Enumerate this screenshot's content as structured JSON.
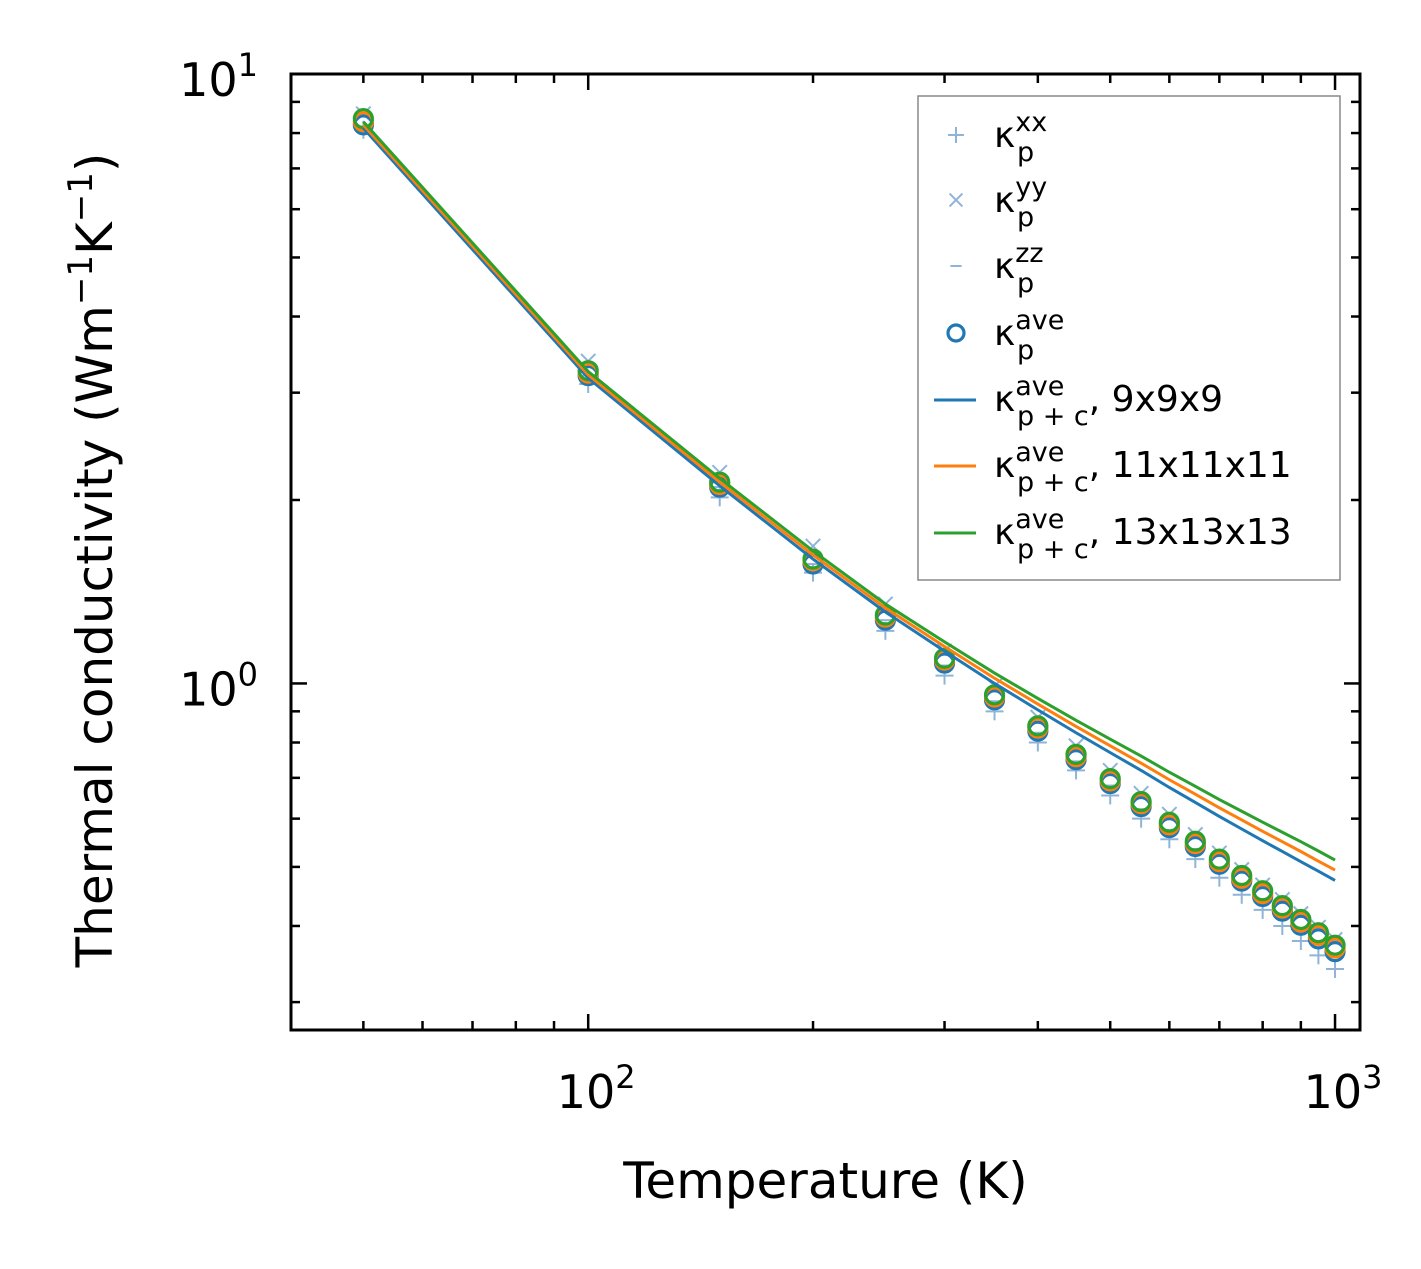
{
  "chart_data": {
    "type": "scatter",
    "xscale": "log",
    "yscale": "log",
    "xlim": [
      40,
      1080
    ],
    "ylim": [
      0.27,
      10
    ],
    "xlabel": "Temperature (K)",
    "ylabel": {
      "main": "Thermal conductivity (Wm",
      "sup1": "−1",
      "mid": "K",
      "sup2": "−1",
      "end": ")"
    },
    "xticks": [
      {
        "value": 100,
        "base": "10",
        "exp": "2"
      },
      {
        "value": 1000,
        "base": "10",
        "exp": "3"
      }
    ],
    "yticks": [
      {
        "value": 1,
        "base": "10",
        "exp": "0"
      },
      {
        "value": 10,
        "base": "10",
        "exp": "1"
      }
    ],
    "temperatures": [
      50,
      100,
      150,
      200,
      250,
      300,
      350,
      400,
      450,
      500,
      550,
      600,
      650,
      700,
      750,
      800,
      850,
      900,
      950,
      1000
    ],
    "series": [
      {
        "name": "kxx",
        "label": {
          "base": "κ",
          "sub": "p",
          "sup": "xx",
          "tail": ""
        },
        "kind": "marker",
        "marker": "plus",
        "color": "#8fb4d8",
        "values": [
          8.1,
          3.1,
          2.02,
          1.52,
          1.22,
          1.03,
          0.9,
          0.8,
          0.72,
          0.655,
          0.6,
          0.555,
          0.515,
          0.48,
          0.45,
          0.425,
          0.4,
          0.378,
          0.358,
          0.34
        ]
      },
      {
        "name": "kyy",
        "label": {
          "base": "κ",
          "sub": "p",
          "sup": "yy",
          "tail": ""
        },
        "kind": "marker",
        "marker": "cross",
        "color": "#8fb4d8",
        "values": [
          8.6,
          3.38,
          2.22,
          1.68,
          1.35,
          1.13,
          0.99,
          0.88,
          0.79,
          0.72,
          0.66,
          0.61,
          0.565,
          0.527,
          0.495,
          0.467,
          0.442,
          0.419,
          0.398,
          0.38
        ]
      },
      {
        "name": "kzz",
        "label": {
          "base": "κ",
          "sub": "p",
          "sup": "zz",
          "tail": ""
        },
        "kind": "marker",
        "marker": "dash",
        "color": "#8fb4d8",
        "values": [
          8.2,
          3.2,
          2.1,
          1.57,
          1.27,
          1.07,
          0.935,
          0.83,
          0.745,
          0.68,
          0.622,
          0.575,
          0.535,
          0.498,
          0.468,
          0.44,
          0.416,
          0.395,
          0.375,
          0.357
        ]
      },
      {
        "name": "kave",
        "label": {
          "base": "κ",
          "sub": "p",
          "sup": "ave",
          "tail": ""
        },
        "kind": "marker",
        "marker": "circle",
        "color": "#1f77b4",
        "values": [
          8.25,
          3.2,
          2.1,
          1.57,
          1.27,
          1.08,
          0.94,
          0.835,
          0.75,
          0.685,
          0.628,
          0.58,
          0.54,
          0.505,
          0.474,
          0.447,
          0.423,
          0.401,
          0.381,
          0.363
        ]
      },
      {
        "name": "kave_orange",
        "label": null,
        "kind": "marker",
        "marker": "circle",
        "color": "#ff7f0e",
        "values": [
          8.35,
          3.23,
          2.12,
          1.59,
          1.285,
          1.092,
          0.95,
          0.845,
          0.758,
          0.692,
          0.635,
          0.586,
          0.546,
          0.51,
          0.479,
          0.452,
          0.428,
          0.406,
          0.386,
          0.368
        ]
      },
      {
        "name": "kave_green",
        "label": null,
        "kind": "marker",
        "marker": "circle",
        "color": "#2ca02c",
        "values": [
          8.45,
          3.26,
          2.14,
          1.6,
          1.295,
          1.1,
          0.958,
          0.852,
          0.765,
          0.698,
          0.64,
          0.592,
          0.551,
          0.515,
          0.484,
          0.457,
          0.432,
          0.41,
          0.39,
          0.372
        ]
      },
      {
        "name": "kpc_9",
        "label": {
          "base": "κ",
          "sub": "p + c",
          "sup": "ave",
          "tail": ", 9x9x9"
        },
        "kind": "line",
        "color": "#1f77b4",
        "values": [
          8.15,
          3.17,
          2.11,
          1.6,
          1.31,
          1.13,
          1.0,
          0.905,
          0.83,
          0.77,
          0.72,
          0.675,
          0.638,
          0.605,
          0.577,
          0.552,
          0.53,
          0.51,
          0.492,
          0.475
        ]
      },
      {
        "name": "kpc_11",
        "label": {
          "base": "κ",
          "sub": "p + c",
          "sup": "ave",
          "tail": ", 11x11x11"
        },
        "kind": "line",
        "color": "#ff7f0e",
        "values": [
          8.25,
          3.21,
          2.14,
          1.625,
          1.33,
          1.15,
          1.02,
          0.925,
          0.85,
          0.79,
          0.74,
          0.695,
          0.658,
          0.625,
          0.597,
          0.572,
          0.55,
          0.53,
          0.511,
          0.494
        ]
      },
      {
        "name": "kpc_13",
        "label": {
          "base": "κ",
          "sub": "p + c",
          "sup": "ave",
          "tail": ", 13x13x13"
        },
        "kind": "line",
        "color": "#2ca02c",
        "values": [
          8.35,
          3.25,
          2.17,
          1.65,
          1.35,
          1.17,
          1.04,
          0.945,
          0.87,
          0.81,
          0.76,
          0.715,
          0.678,
          0.645,
          0.617,
          0.592,
          0.57,
          0.55,
          0.531,
          0.513
        ]
      }
    ],
    "legend": {
      "position": "upper-right"
    }
  }
}
